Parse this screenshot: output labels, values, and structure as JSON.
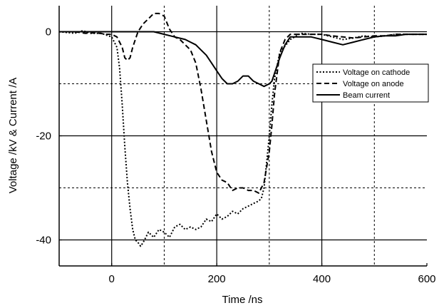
{
  "chart_data": {
    "type": "line",
    "title": "",
    "xlabel": "Time /ns",
    "ylabel": "Voltage /kV & Current /A",
    "xlim": [
      -100,
      600
    ],
    "ylim": [
      -45,
      5
    ],
    "x_ticks": [
      0,
      200,
      400,
      600
    ],
    "x_tick_labels": [
      "0",
      "200",
      "400",
      "600"
    ],
    "y_ticks": [
      0,
      -20,
      -40
    ],
    "y_tick_labels": [
      "0",
      "-20",
      "-40"
    ],
    "grid": {
      "solid_x": [
        0,
        200,
        400
      ],
      "dashed_x": [
        100,
        300,
        500
      ],
      "solid_y": [
        0,
        -20,
        -40
      ],
      "dashed_y": [
        -10,
        -30
      ]
    },
    "legend_position": "right",
    "series": [
      {
        "name": "Voltage on cathode",
        "style": "dotted",
        "x": [
          -100,
          -70,
          -55,
          -40,
          -20,
          0,
          10,
          15,
          20,
          25,
          30,
          35,
          40,
          45,
          50,
          55,
          60,
          65,
          70,
          80,
          90,
          100,
          110,
          120,
          130,
          140,
          150,
          160,
          170,
          180,
          190,
          200,
          210,
          220,
          230,
          240,
          250,
          260,
          270,
          280,
          285,
          290,
          295,
          300,
          305,
          310,
          320,
          340,
          360,
          380,
          400,
          420,
          440,
          460,
          480,
          500,
          520,
          540,
          560,
          580,
          600
        ],
        "y": [
          0,
          -0.3,
          0.2,
          -0.3,
          -0.3,
          -1,
          -3,
          -7,
          -14,
          -22,
          -29,
          -34,
          -38,
          -40,
          -40.5,
          -41.2,
          -40.5,
          -39.5,
          -38.5,
          -39.5,
          -38,
          -38.5,
          -39.5,
          -37.5,
          -37,
          -38,
          -37.5,
          -38,
          -37.5,
          -36,
          -36.5,
          -35,
          -36,
          -35.5,
          -34.5,
          -35,
          -34,
          -33.5,
          -33,
          -32.5,
          -32,
          -30,
          -25,
          -20,
          -14,
          -9,
          -4,
          -1.5,
          -0.3,
          -0.5,
          -0.5,
          -1,
          -1.5,
          -1.2,
          -0.8,
          -1,
          -0.8,
          -0.5,
          -0.5,
          -0.5,
          -0.5
        ]
      },
      {
        "name": "Voltage on anode",
        "style": "dashed",
        "x": [
          -100,
          -70,
          -50,
          -30,
          -10,
          0,
          10,
          20,
          25,
          30,
          35,
          40,
          50,
          60,
          70,
          80,
          90,
          100,
          110,
          120,
          130,
          140,
          150,
          160,
          170,
          180,
          190,
          200,
          210,
          220,
          230,
          240,
          250,
          260,
          270,
          280,
          290,
          300,
          305,
          310,
          315,
          320,
          330,
          340,
          360,
          380,
          400,
          420,
          440,
          460,
          480,
          500,
          520,
          540,
          560,
          580,
          600
        ],
        "y": [
          0,
          0,
          -0.3,
          -0.2,
          -0.5,
          -0.5,
          -1,
          -3,
          -5,
          -5.5,
          -5,
          -3,
          0,
          1.5,
          2.5,
          3.5,
          3.5,
          3,
          0.5,
          -1,
          -1.5,
          -2.5,
          -3.5,
          -6,
          -11,
          -17,
          -23,
          -27,
          -28.5,
          -29,
          -30.5,
          -30,
          -30,
          -30.5,
          -30.5,
          -31,
          -29,
          -23,
          -18,
          -12,
          -8,
          -4,
          -1.5,
          -0.5,
          -0.5,
          -0.5,
          -0.5,
          -0.8,
          -1,
          -1.2,
          -1,
          -0.8,
          -0.8,
          -0.5,
          -0.5,
          -0.5,
          -0.5
        ]
      },
      {
        "name": "Beam current",
        "style": "solid",
        "x": [
          -100,
          -60,
          -20,
          0,
          40,
          80,
          100,
          120,
          140,
          150,
          160,
          170,
          180,
          190,
          200,
          210,
          220,
          230,
          240,
          250,
          260,
          270,
          280,
          290,
          300,
          305,
          310,
          320,
          330,
          340,
          360,
          380,
          400,
          420,
          440,
          460,
          480,
          500,
          520,
          540,
          560,
          580,
          600
        ],
        "y": [
          0,
          0,
          0,
          0,
          0,
          0,
          -0.5,
          -1,
          -1.5,
          -2,
          -2.5,
          -3.5,
          -4.5,
          -6,
          -7.5,
          -9,
          -10,
          -10,
          -9.5,
          -8.5,
          -8.5,
          -9.5,
          -10,
          -10.5,
          -10,
          -9.5,
          -8,
          -5,
          -2.5,
          -1,
          -1,
          -1,
          -1.5,
          -2,
          -2.5,
          -2,
          -1.5,
          -1,
          -0.8,
          -0.8,
          -0.5,
          -0.5,
          -0.5
        ]
      }
    ]
  }
}
